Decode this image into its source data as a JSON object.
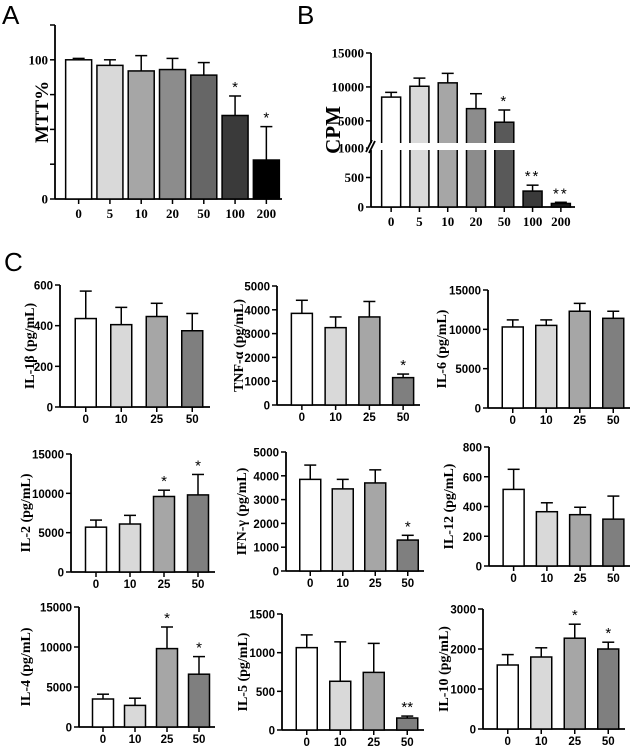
{
  "panel_labels": [
    "A",
    "B",
    "C"
  ],
  "chart_data": [
    {
      "id": "A",
      "type": "bar",
      "ylabel": "MTT%",
      "categories": [
        "0",
        "5",
        "10",
        "20",
        "50",
        "100",
        "200"
      ],
      "values": [
        100,
        96,
        92,
        93,
        89,
        60,
        28
      ],
      "errors": [
        1,
        4,
        11,
        8,
        9,
        14,
        24
      ],
      "significance": [
        "",
        "",
        "",
        "",
        "",
        "*",
        "*"
      ],
      "ylim": [
        0,
        125
      ],
      "yticks": [
        0,
        100
      ],
      "minor_ticks": [
        25,
        50,
        75,
        125
      ],
      "colors": [
        "#ffffff",
        "#d9d9d9",
        "#a6a6a6",
        "#8c8c8c",
        "#666666",
        "#3a3a3a",
        "#000000"
      ]
    },
    {
      "id": "B",
      "type": "bar",
      "broken_axis": true,
      "ylabel": "CPM",
      "categories": [
        "0",
        "5",
        "10",
        "20",
        "50",
        "100",
        "200"
      ],
      "values": [
        8500,
        10100,
        10600,
        6800,
        4800,
        270,
        60
      ],
      "errors": [
        700,
        1200,
        1400,
        2200,
        1800,
        100,
        20
      ],
      "significance": [
        "",
        "",
        "",
        "",
        "*",
        "**",
        "**"
      ],
      "lower_ylim": [
        0,
        1000
      ],
      "lower_ticks": [
        0,
        500,
        1000
      ],
      "upper_ylim": [
        1000,
        15000
      ],
      "upper_ticks": [
        5000,
        10000,
        15000
      ],
      "colors": [
        "#ffffff",
        "#d9d9d9",
        "#a6a6a6",
        "#8c8c8c",
        "#595959",
        "#3a3a3a",
        "#1a1a1a"
      ]
    },
    {
      "id": "IL-1b",
      "type": "bar",
      "ylabel": "IL-1β (pg/mL)",
      "categories": [
        "0",
        "10",
        "25",
        "50"
      ],
      "values": [
        435,
        405,
        445,
        375
      ],
      "errors": [
        135,
        85,
        65,
        85
      ],
      "significance": [
        "",
        "",
        "",
        ""
      ],
      "ylim": [
        0,
        600
      ],
      "yticks": [
        0,
        200,
        400,
        600
      ]
    },
    {
      "id": "TNF-a",
      "type": "bar",
      "ylabel": "TNF-α (pg/mL)",
      "categories": [
        "0",
        "10",
        "25",
        "50"
      ],
      "values": [
        3850,
        3250,
        3700,
        1150
      ],
      "errors": [
        550,
        450,
        650,
        150
      ],
      "significance": [
        "",
        "",
        "",
        "*"
      ],
      "ylim": [
        0,
        5000
      ],
      "yticks": [
        0,
        1000,
        2000,
        3000,
        4000,
        5000
      ]
    },
    {
      "id": "IL-6",
      "type": "bar",
      "ylabel": "IL-6 (pg/mL)",
      "categories": [
        "0",
        "10",
        "25",
        "50"
      ],
      "values": [
        10300,
        10500,
        12300,
        11400
      ],
      "errors": [
        900,
        700,
        1000,
        900
      ],
      "significance": [
        "",
        "",
        "",
        ""
      ],
      "ylim": [
        0,
        15000
      ],
      "yticks": [
        0,
        5000,
        10000,
        15000
      ]
    },
    {
      "id": "IL-2",
      "type": "bar",
      "ylabel": "IL-2 (pg/mL)",
      "categories": [
        "0",
        "10",
        "25",
        "50"
      ],
      "values": [
        5700,
        6100,
        9600,
        9800
      ],
      "errors": [
        900,
        1100,
        800,
        2600
      ],
      "significance": [
        "",
        "",
        "*",
        "*"
      ],
      "ylim": [
        0,
        15000
      ],
      "yticks": [
        0,
        5000,
        10000,
        15000
      ]
    },
    {
      "id": "IFN-g",
      "type": "bar",
      "ylabel": "IFN-γ (pg/mL)",
      "categories": [
        "0",
        "10",
        "25",
        "50"
      ],
      "values": [
        3850,
        3450,
        3700,
        1300
      ],
      "errors": [
        600,
        400,
        550,
        200
      ],
      "significance": [
        "",
        "",
        "",
        "*"
      ],
      "ylim": [
        0,
        5000
      ],
      "yticks": [
        0,
        1000,
        2000,
        3000,
        4000,
        5000
      ]
    },
    {
      "id": "IL-12",
      "type": "bar",
      "ylabel": "IL-12 (pg/mL)",
      "categories": [
        "0",
        "10",
        "25",
        "50"
      ],
      "values": [
        515,
        365,
        345,
        315
      ],
      "errors": [
        135,
        60,
        50,
        155
      ],
      "significance": [
        "",
        "",
        "",
        ""
      ],
      "ylim": [
        0,
        800
      ],
      "yticks": [
        0,
        200,
        400,
        600,
        800
      ]
    },
    {
      "id": "IL-4",
      "type": "bar",
      "ylabel": "IL-4 (pg/mL)",
      "categories": [
        "0",
        "10",
        "25",
        "50"
      ],
      "values": [
        3500,
        2700,
        9800,
        6600
      ],
      "errors": [
        600,
        900,
        2700,
        2200
      ],
      "significance": [
        "",
        "",
        "*",
        "*"
      ],
      "ylim": [
        0,
        15000
      ],
      "yticks": [
        0,
        5000,
        10000,
        15000
      ]
    },
    {
      "id": "IL-5",
      "type": "bar",
      "ylabel": "IL-5 (pg/mL)",
      "categories": [
        "0",
        "10",
        "25",
        "50"
      ],
      "values": [
        1065,
        630,
        745,
        155
      ],
      "errors": [
        165,
        510,
        375,
        25
      ],
      "significance": [
        "",
        "",
        "",
        "**"
      ],
      "ylim": [
        0,
        1500
      ],
      "yticks": [
        0,
        500,
        1000,
        1500
      ]
    },
    {
      "id": "IL-10",
      "type": "bar",
      "ylabel": "IL-10 (pg/mL)",
      "categories": [
        "0",
        "10",
        "25",
        "50"
      ],
      "values": [
        1600,
        1800,
        2270,
        2000
      ],
      "errors": [
        260,
        230,
        350,
        170
      ],
      "significance": [
        "",
        "",
        "*",
        "*"
      ],
      "ylim": [
        0,
        3000
      ],
      "yticks": [
        0,
        1000,
        2000,
        3000
      ]
    }
  ],
  "c_colors": [
    "#ffffff",
    "#d9d9d9",
    "#a6a6a6",
    "#7f7f7f"
  ]
}
